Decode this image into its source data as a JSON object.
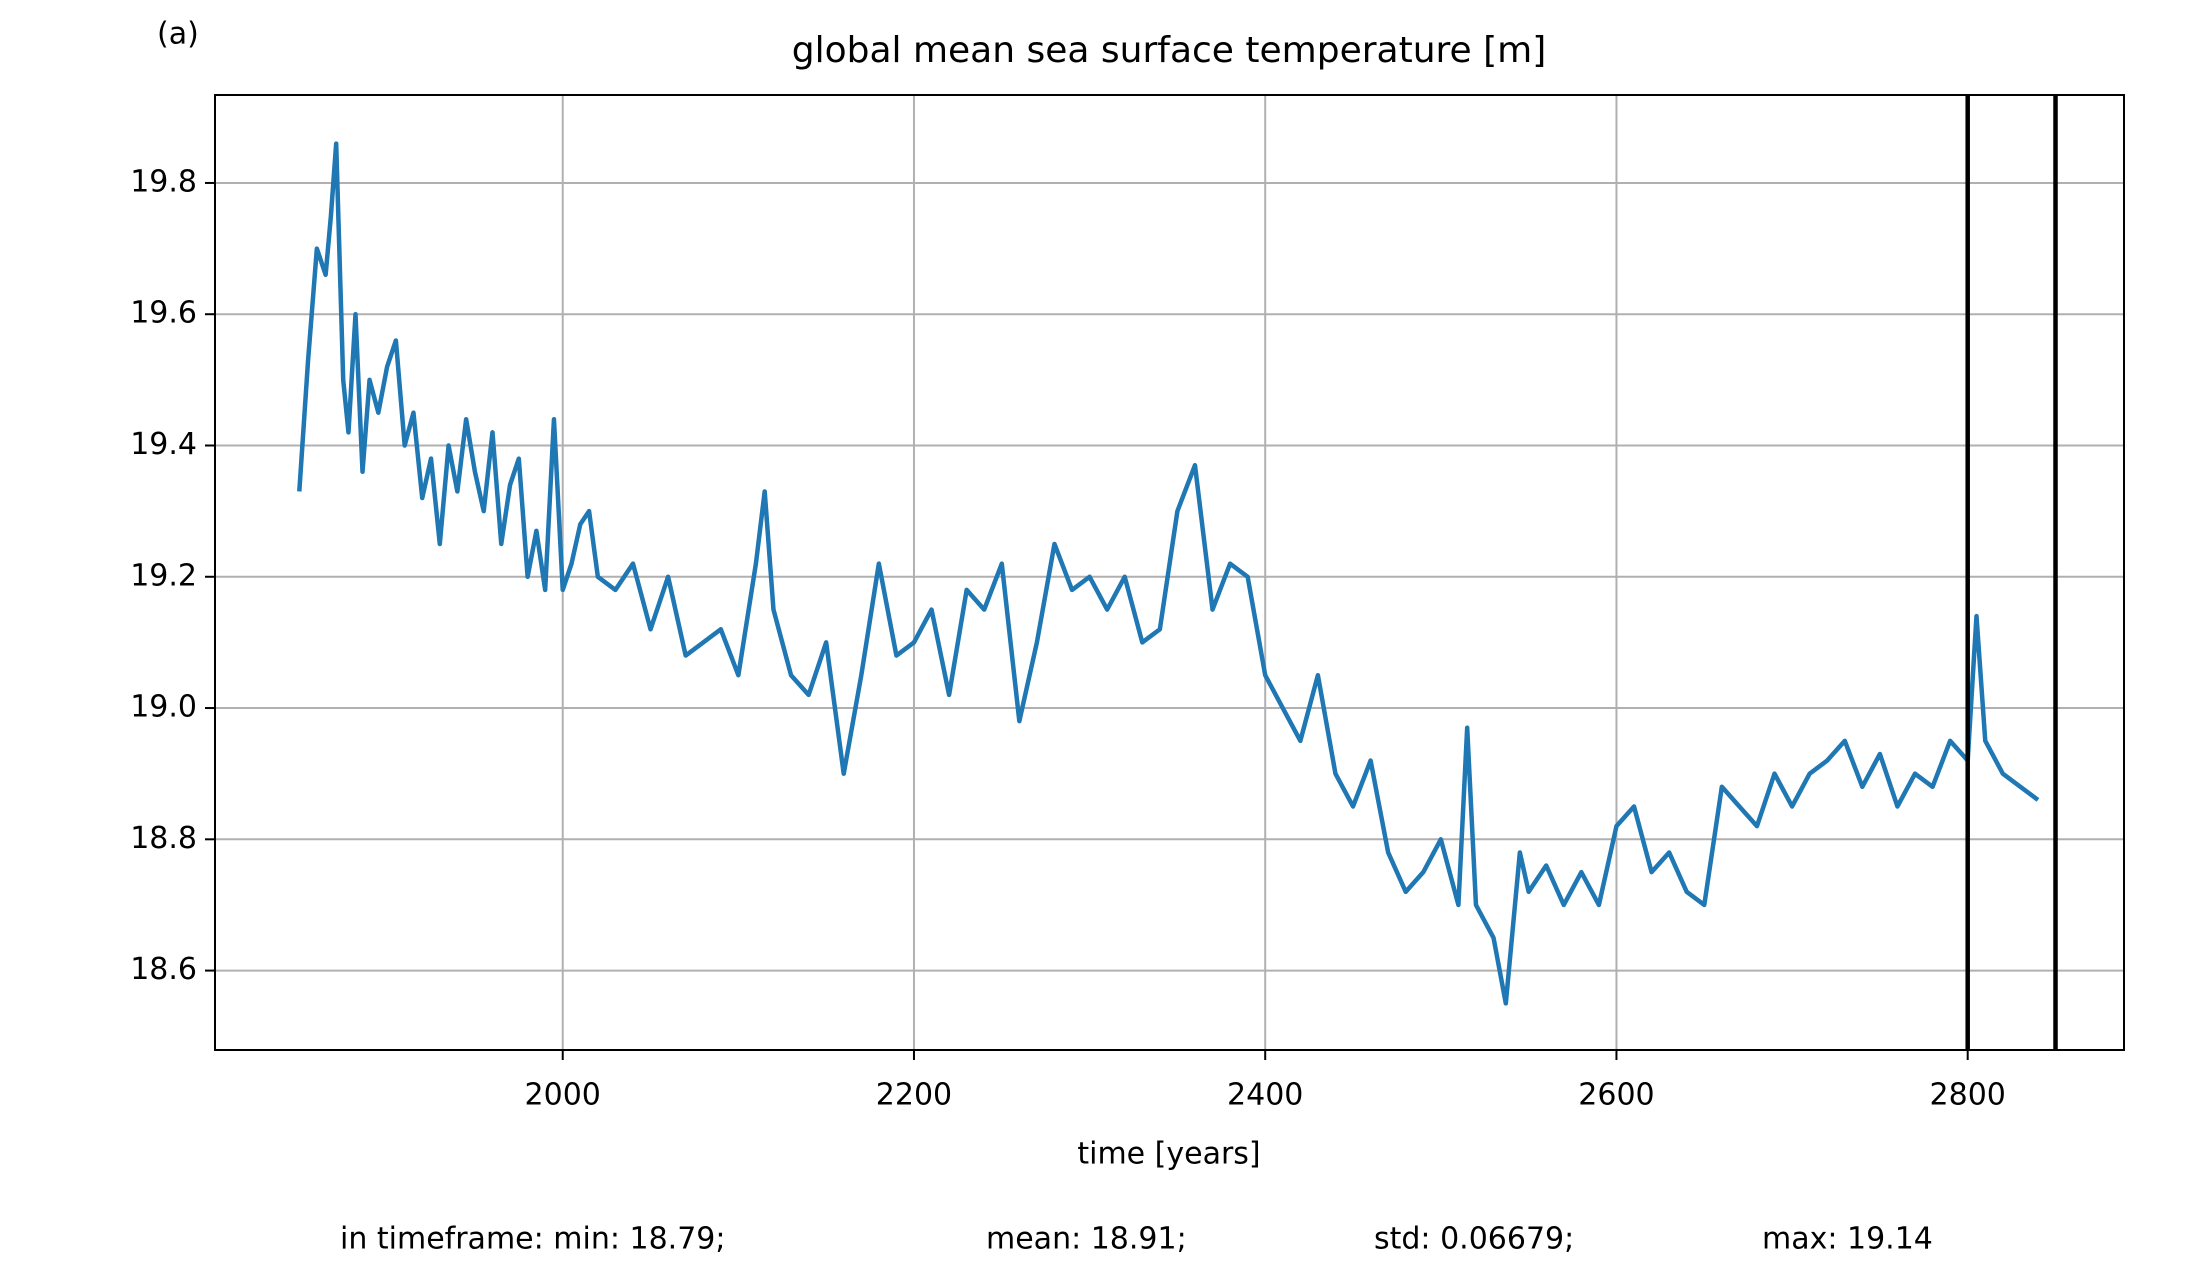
{
  "chart_data": {
    "type": "line",
    "title": "global mean sea surface temperature [m]",
    "panel_label": "(a)",
    "x_label": "time [years]",
    "footer": [
      "in timeframe: min: 18.79;",
      "mean: 18.91;",
      "std: 0.06679;",
      "max: 19.14"
    ],
    "x": [
      1850,
      1855,
      1860,
      1865,
      1868,
      1871,
      1875,
      1878,
      1882,
      1886,
      1890,
      1895,
      1900,
      1905,
      1910,
      1915,
      1920,
      1925,
      1930,
      1935,
      1940,
      1945,
      1950,
      1955,
      1960,
      1965,
      1970,
      1975,
      1980,
      1985,
      1990,
      1995,
      2000,
      2005,
      2010,
      2015,
      2020,
      2030,
      2040,
      2050,
      2060,
      2070,
      2080,
      2090,
      2100,
      2110,
      2115,
      2120,
      2130,
      2140,
      2150,
      2160,
      2170,
      2180,
      2190,
      2200,
      2210,
      2220,
      2230,
      2240,
      2250,
      2260,
      2270,
      2280,
      2290,
      2300,
      2310,
      2320,
      2330,
      2340,
      2350,
      2360,
      2370,
      2380,
      2390,
      2400,
      2410,
      2420,
      2430,
      2440,
      2450,
      2460,
      2470,
      2480,
      2490,
      2500,
      2510,
      2515,
      2520,
      2530,
      2537,
      2545,
      2550,
      2560,
      2570,
      2580,
      2590,
      2600,
      2610,
      2620,
      2630,
      2640,
      2650,
      2660,
      2670,
      2680,
      2690,
      2700,
      2710,
      2720,
      2730,
      2740,
      2750,
      2760,
      2770,
      2780,
      2790,
      2800,
      2805,
      2810,
      2820,
      2830,
      2840
    ],
    "series": [
      {
        "name": "global mean sea surface temperature",
        "color": "#1f77b4",
        "values": [
          19.33,
          19.53,
          19.7,
          19.66,
          19.75,
          19.86,
          19.5,
          19.42,
          19.6,
          19.36,
          19.5,
          19.45,
          19.52,
          19.56,
          19.4,
          19.45,
          19.32,
          19.38,
          19.25,
          19.4,
          19.33,
          19.44,
          19.36,
          19.3,
          19.42,
          19.25,
          19.34,
          19.38,
          19.2,
          19.27,
          19.18,
          19.44,
          19.18,
          19.22,
          19.28,
          19.3,
          19.2,
          19.18,
          19.22,
          19.12,
          19.2,
          19.08,
          19.1,
          19.12,
          19.05,
          19.22,
          19.33,
          19.15,
          19.05,
          19.02,
          19.1,
          18.9,
          19.05,
          19.22,
          19.08,
          19.1,
          19.15,
          19.02,
          19.18,
          19.15,
          19.22,
          18.98,
          19.1,
          19.25,
          19.18,
          19.2,
          19.15,
          19.2,
          19.1,
          19.12,
          19.3,
          19.37,
          19.15,
          19.22,
          19.2,
          19.05,
          19.0,
          18.95,
          19.05,
          18.9,
          18.85,
          18.92,
          18.78,
          18.72,
          18.75,
          18.8,
          18.7,
          18.97,
          18.7,
          18.65,
          18.55,
          18.78,
          18.72,
          18.76,
          18.7,
          18.75,
          18.7,
          18.82,
          18.85,
          18.75,
          18.78,
          18.72,
          18.7,
          18.88,
          18.85,
          18.82,
          18.9,
          18.85,
          18.9,
          18.92,
          18.95,
          18.88,
          18.93,
          18.85,
          18.9,
          18.88,
          18.95,
          18.92,
          19.14,
          18.95,
          18.9,
          18.88,
          18.86
        ]
      }
    ],
    "vlines": [
      2800,
      2850
    ],
    "vline_color": "#000000",
    "xlim": [
      1802,
      2889
    ],
    "ylim": [
      18.479,
      19.934
    ],
    "xticks": [
      2000,
      2200,
      2400,
      2600,
      2800
    ],
    "yticks": [
      18.6,
      18.8,
      {
        "value": 19.0,
        "label": "19.0"
      },
      19.2,
      19.4,
      19.6,
      19.8
    ],
    "grid": true
  }
}
